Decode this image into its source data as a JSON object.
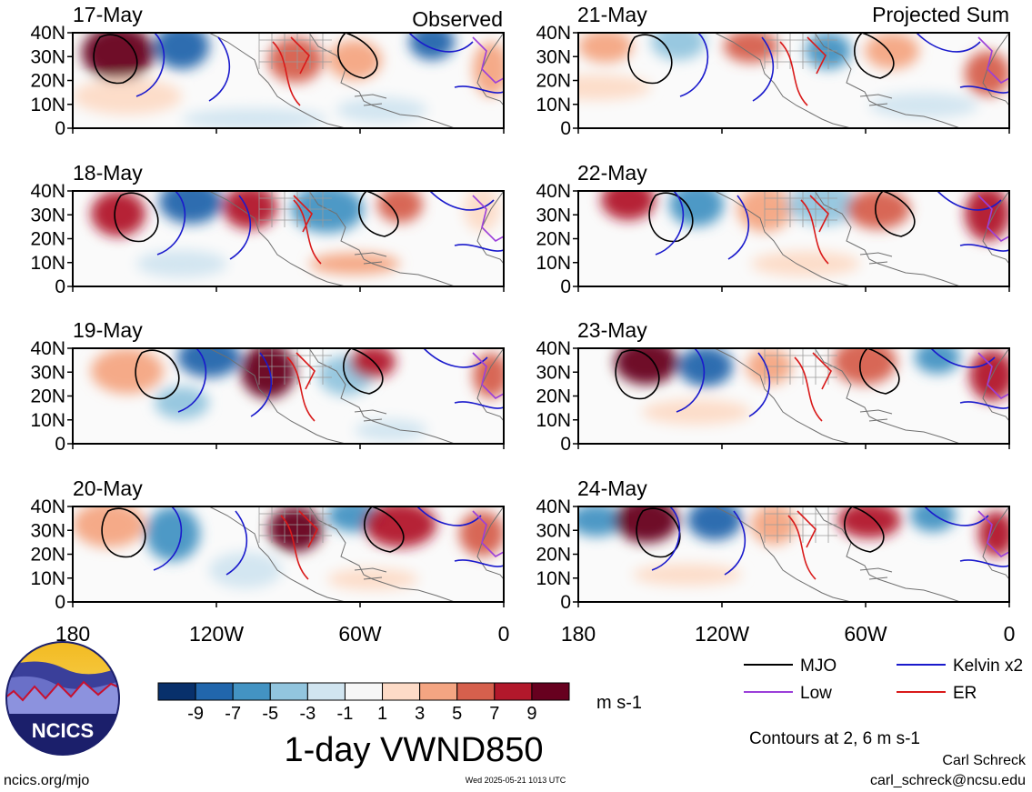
{
  "figure": {
    "title": "1-day VWND850",
    "units": "m s-1",
    "contour_note": "Contours at 2, 6 m s-1",
    "author": "Carl Schreck",
    "email": "carl_schreck@ncsu.edu",
    "site": "ncics.org/mjo",
    "timestamp": "Wed 2025-05-21 1013 UTC",
    "logo_text": "NCICS"
  },
  "columns": [
    {
      "tag": "Observed",
      "panels": [
        {
          "date": "17-May"
        },
        {
          "date": "18-May"
        },
        {
          "date": "19-May"
        },
        {
          "date": "20-May"
        }
      ]
    },
    {
      "tag": "Projected Sum",
      "panels": [
        {
          "date": "21-May"
        },
        {
          "date": "22-May"
        },
        {
          "date": "23-May"
        },
        {
          "date": "24-May"
        }
      ]
    }
  ],
  "axes": {
    "y_ticks": [
      "40N",
      "30N",
      "20N",
      "10N",
      "0"
    ],
    "x_ticks": [
      "180",
      "120W",
      "60W",
      "0"
    ]
  },
  "colorbar": {
    "labels": [
      "-9",
      "-7",
      "-5",
      "-3",
      "-1",
      "1",
      "3",
      "5",
      "7",
      "9"
    ],
    "colors": [
      "#08306b",
      "#2166ac",
      "#4393c3",
      "#92c5de",
      "#d1e5f0",
      "#f7f7f7",
      "#fddbc7",
      "#f4a582",
      "#d6604d",
      "#b2182b",
      "#67001f"
    ]
  },
  "legend": [
    {
      "label": "MJO",
      "color": "#000000"
    },
    {
      "label": "Kelvin x2",
      "color": "#1a1acc"
    },
    {
      "label": "Low",
      "color": "#9b3fd9"
    },
    {
      "label": "ER",
      "color": "#d91a1a"
    }
  ]
}
